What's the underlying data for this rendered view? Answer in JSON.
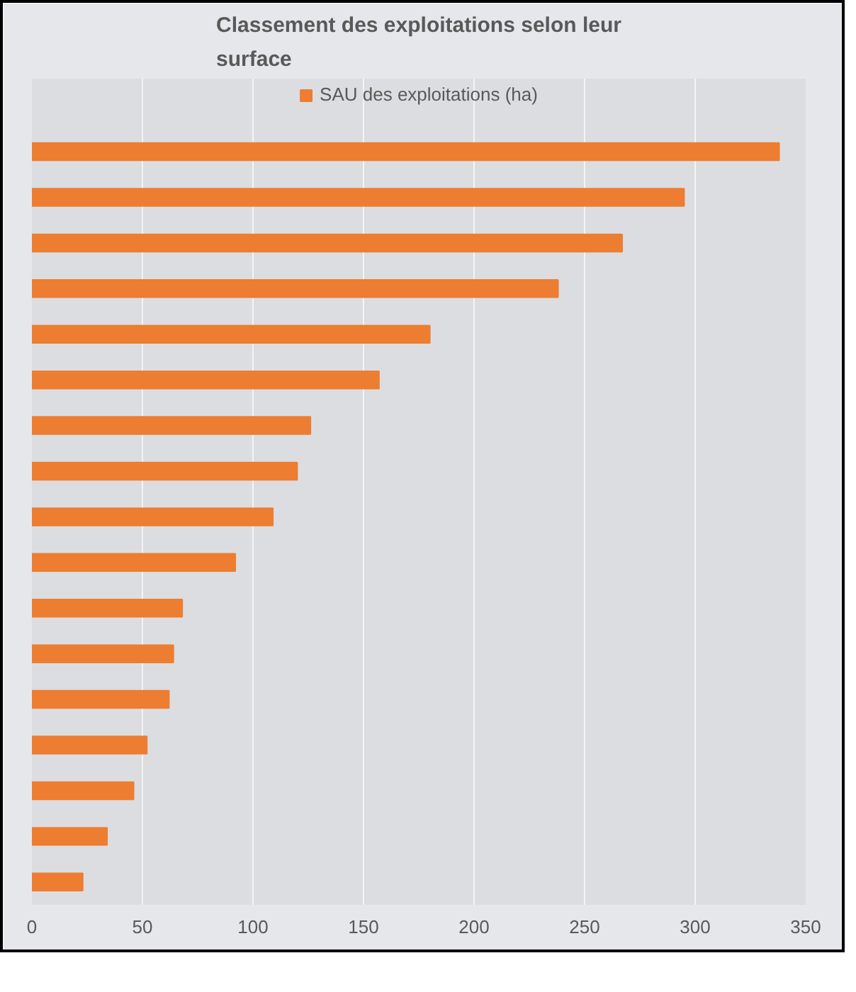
{
  "chart_data": {
    "type": "bar",
    "orientation": "horizontal",
    "title": "Classement des exploitations selon leur\nsurface",
    "categories": [
      null,
      null,
      null,
      null,
      null,
      null,
      null,
      null,
      null,
      null,
      null,
      null,
      null,
      null,
      null,
      null,
      null
    ],
    "series": [
      {
        "name": "SAU des exploitations (ha)",
        "color": "#ed7d31",
        "values": [
          338,
          295,
          267,
          238,
          180,
          157,
          126,
          120,
          109,
          92,
          68,
          64,
          62,
          52,
          46,
          34,
          23
        ]
      }
    ],
    "xlim": [
      0,
      350
    ],
    "xticks": [
      0,
      50,
      100,
      150,
      200,
      250,
      300,
      350
    ],
    "grid": "x",
    "legend": "top"
  }
}
